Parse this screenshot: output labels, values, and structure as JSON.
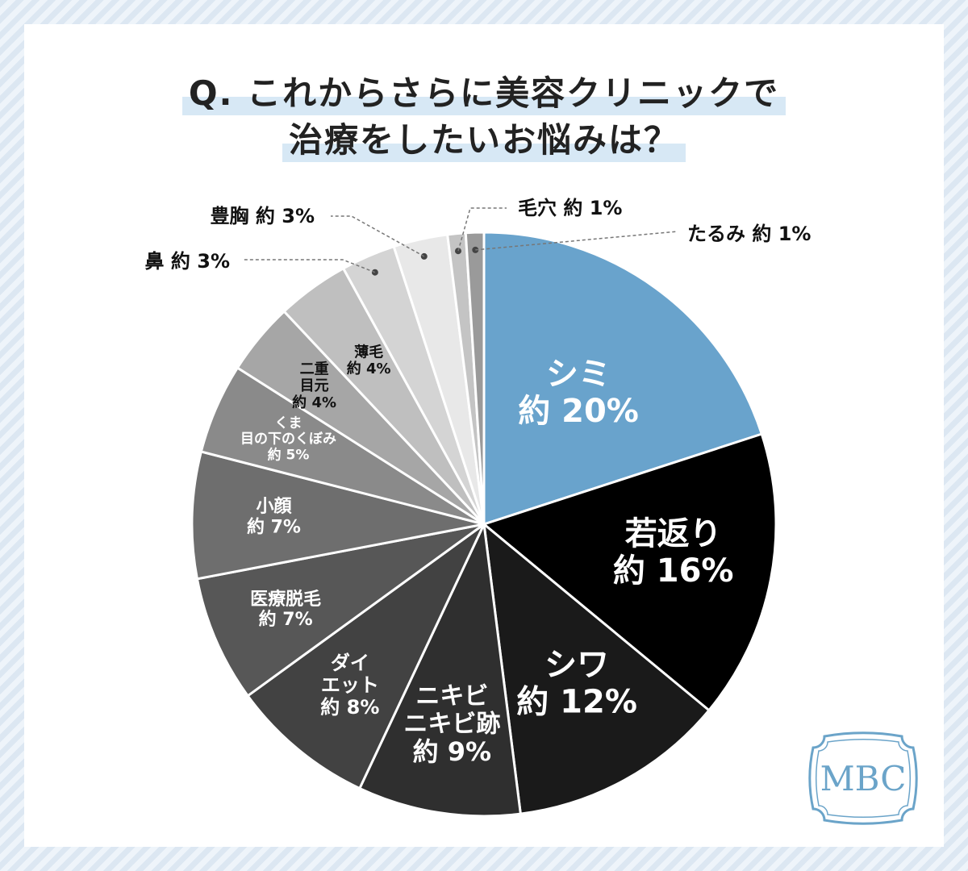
{
  "title": {
    "line1": "Q. これからさらに美容クリニックで",
    "line2": "治療をしたいお悩みは？"
  },
  "logo": {
    "text": "MBC",
    "color": "#6ba4c9"
  },
  "chart_data": {
    "type": "pie",
    "title": "Q. これからさらに美容クリニックで治療をしたいお悩みは？",
    "slices": [
      {
        "label": "シミ",
        "label_lines": [
          "シミ"
        ],
        "value_text": "約 20%",
        "value": 20,
        "color": "#69a3cc",
        "text_color": "#ffffff",
        "label_mode": "inside"
      },
      {
        "label": "若返り",
        "label_lines": [
          "若返り"
        ],
        "value_text": "約 16%",
        "value": 16,
        "color": "#000000",
        "text_color": "#ffffff",
        "label_mode": "inside"
      },
      {
        "label": "シワ",
        "label_lines": [
          "シワ"
        ],
        "value_text": "約 12%",
        "value": 12,
        "color": "#1a1a1a",
        "text_color": "#ffffff",
        "label_mode": "inside"
      },
      {
        "label": "ニキビ ニキビ跡",
        "label_lines": [
          "ニキビ",
          "ニキビ跡"
        ],
        "value_text": "約 9%",
        "value": 9,
        "color": "#2f2f2f",
        "text_color": "#ffffff",
        "label_mode": "inside"
      },
      {
        "label": "ダイエット",
        "label_lines": [
          "ダイ",
          "エット"
        ],
        "value_text": "約 8%",
        "value": 8,
        "color": "#424242",
        "text_color": "#ffffff",
        "label_mode": "inside"
      },
      {
        "label": "医療脱毛",
        "label_lines": [
          "医療脱毛"
        ],
        "value_text": "約 7%",
        "value": 7,
        "color": "#575757",
        "text_color": "#ffffff",
        "label_mode": "inside"
      },
      {
        "label": "小顔",
        "label_lines": [
          "小顔"
        ],
        "value_text": "約 7%",
        "value": 7,
        "color": "#6e6e6e",
        "text_color": "#ffffff",
        "label_mode": "inside"
      },
      {
        "label": "くま 目の下のくぼみ",
        "label_lines": [
          "くま",
          "目の下のくぼみ"
        ],
        "value_text": "約 5%",
        "value": 5,
        "color": "#8a8a8a",
        "text_color": "#ffffff",
        "label_mode": "inside"
      },
      {
        "label": "二重 目元",
        "label_lines": [
          "二重",
          "目元"
        ],
        "value_text": "約 4%",
        "value": 4,
        "color": "#a6a6a6",
        "text_color": "#111111",
        "label_mode": "inside"
      },
      {
        "label": "薄毛",
        "label_lines": [
          "薄毛"
        ],
        "value_text": "約 4%",
        "value": 4,
        "color": "#bfbfbf",
        "text_color": "#111111",
        "label_mode": "inside"
      },
      {
        "label": "鼻",
        "label_lines": [
          "鼻"
        ],
        "value_text": "約 3%",
        "value": 3,
        "color": "#d4d4d4",
        "text_color": "#111111",
        "label_mode": "callout",
        "callout_side": "left"
      },
      {
        "label": "豊胸",
        "label_lines": [
          "豊胸"
        ],
        "value_text": "約 3%",
        "value": 3,
        "color": "#e8e8e8",
        "text_color": "#111111",
        "label_mode": "callout",
        "callout_side": "left"
      },
      {
        "label": "毛穴",
        "label_lines": [
          "毛穴"
        ],
        "value_text": "約 1%",
        "value": 1,
        "color": "#c4c4c4",
        "text_color": "#111111",
        "label_mode": "callout",
        "callout_side": "right"
      },
      {
        "label": "たるみ",
        "label_lines": [
          "たるみ"
        ],
        "value_text": "約 1%",
        "value": 1,
        "color": "#9a9a9a",
        "text_color": "#111111",
        "label_mode": "callout",
        "callout_side": "right"
      }
    ]
  }
}
